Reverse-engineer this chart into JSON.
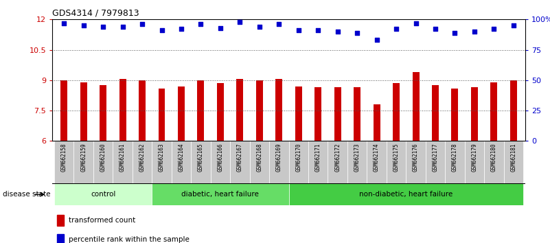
{
  "title": "GDS4314 / 7979813",
  "samples": [
    "GSM662158",
    "GSM662159",
    "GSM662160",
    "GSM662161",
    "GSM662162",
    "GSM662163",
    "GSM662164",
    "GSM662165",
    "GSM662166",
    "GSM662167",
    "GSM662168",
    "GSM662169",
    "GSM662170",
    "GSM662171",
    "GSM662172",
    "GSM662173",
    "GSM662174",
    "GSM662175",
    "GSM662176",
    "GSM662177",
    "GSM662178",
    "GSM662179",
    "GSM662180",
    "GSM662181"
  ],
  "red_values": [
    9.0,
    8.9,
    8.75,
    9.05,
    9.0,
    8.6,
    8.7,
    9.0,
    8.85,
    9.05,
    9.0,
    9.05,
    8.7,
    8.65,
    8.65,
    8.65,
    7.8,
    8.85,
    9.4,
    8.75,
    8.6,
    8.65,
    8.9,
    9.0
  ],
  "blue_values": [
    97,
    95,
    94,
    94,
    96,
    91,
    92,
    96,
    93,
    98,
    94,
    96,
    91,
    91,
    90,
    89,
    83,
    92,
    97,
    92,
    89,
    90,
    92,
    95
  ],
  "groups": [
    {
      "label": "control",
      "start": 0,
      "end": 5,
      "color": "#ccffcc"
    },
    {
      "label": "diabetic, heart failure",
      "start": 5,
      "end": 12,
      "color": "#66dd66"
    },
    {
      "label": "non-diabetic, heart failure",
      "start": 12,
      "end": 24,
      "color": "#44cc44"
    }
  ],
  "ylim_left": [
    6,
    12
  ],
  "ylim_right": [
    0,
    100
  ],
  "yticks_left": [
    6,
    7.5,
    9,
    10.5,
    12
  ],
  "yticks_right": [
    0,
    25,
    50,
    75,
    100
  ],
  "ytick_labels_right": [
    "0",
    "25",
    "50",
    "75",
    "100%"
  ],
  "red_color": "#cc0000",
  "blue_color": "#0000cc",
  "bar_bg_color": "#c8c8c8",
  "plot_bg_color": "#ffffff",
  "dotted_line_color": "#555555",
  "legend_red_label": "transformed count",
  "legend_blue_label": "percentile rank within the sample",
  "disease_state_label": "disease state"
}
